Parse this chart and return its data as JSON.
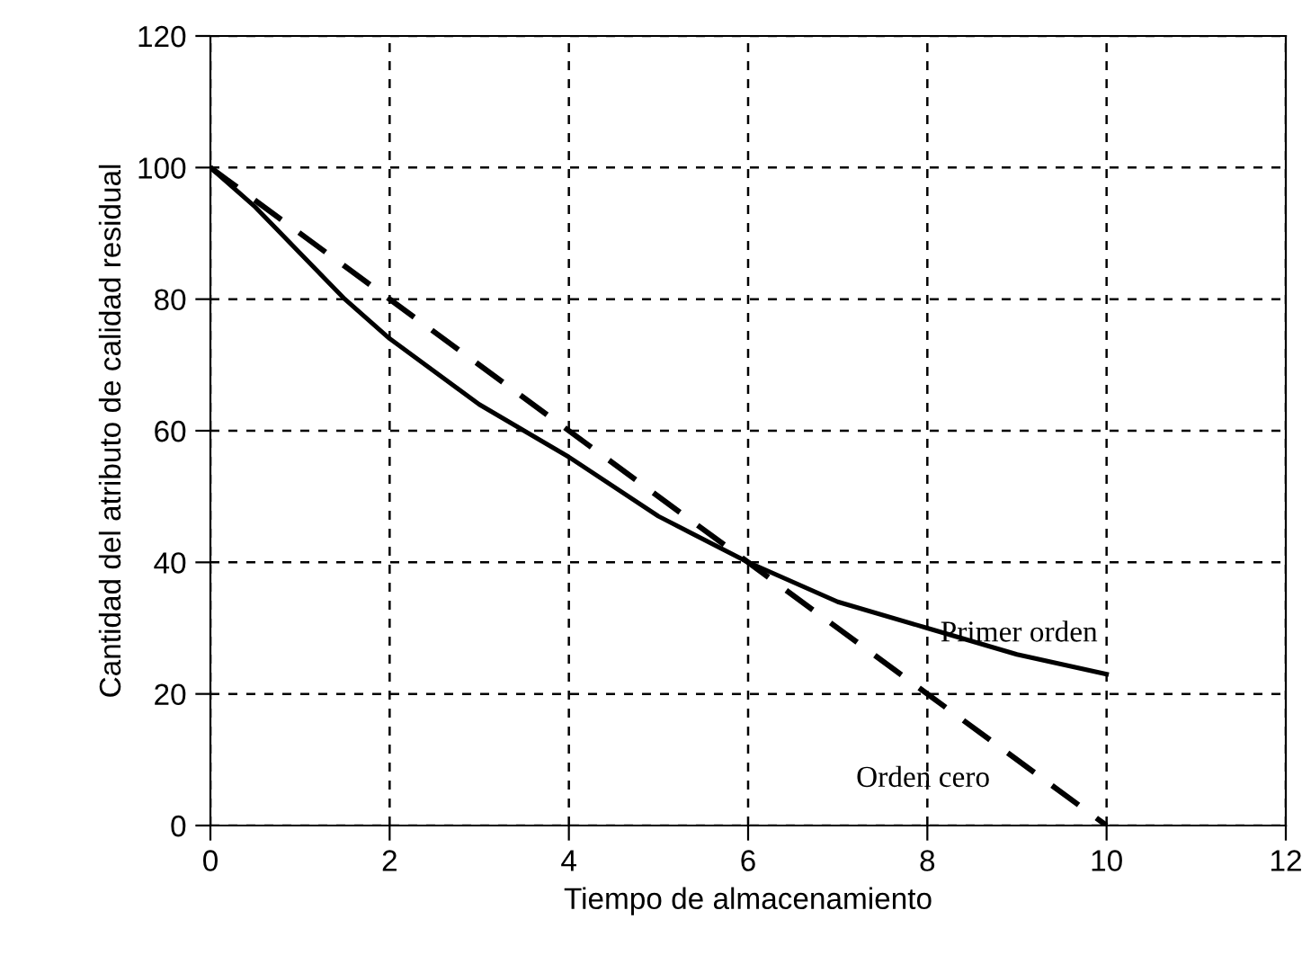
{
  "chart_data": {
    "type": "line",
    "xlabel": "Tiempo de almacenamiento",
    "ylabel": "Cantidad del atributo de calidad residual",
    "series": [
      {
        "name": "Primer orden",
        "color": "#000000",
        "line_style": "solid",
        "x": [
          0,
          0.5,
          1,
          1.5,
          2,
          3,
          4,
          5,
          6,
          7,
          8,
          9,
          10
        ],
        "values": [
          100,
          94,
          87,
          80,
          74,
          64,
          56,
          47,
          40,
          34,
          30,
          26,
          23
        ]
      },
      {
        "name": "Orden cero",
        "color": "#000000",
        "line_style": "dashed",
        "x": [
          0,
          10
        ],
        "values": [
          100,
          0
        ]
      }
    ],
    "xlim": [
      0,
      12
    ],
    "ylim": [
      0,
      120
    ],
    "xticks": [
      0,
      2,
      4,
      6,
      8,
      10,
      12
    ],
    "yticks": [
      0,
      20,
      40,
      60,
      80,
      100,
      120
    ],
    "grid": true,
    "legend": false,
    "marker": "none"
  }
}
